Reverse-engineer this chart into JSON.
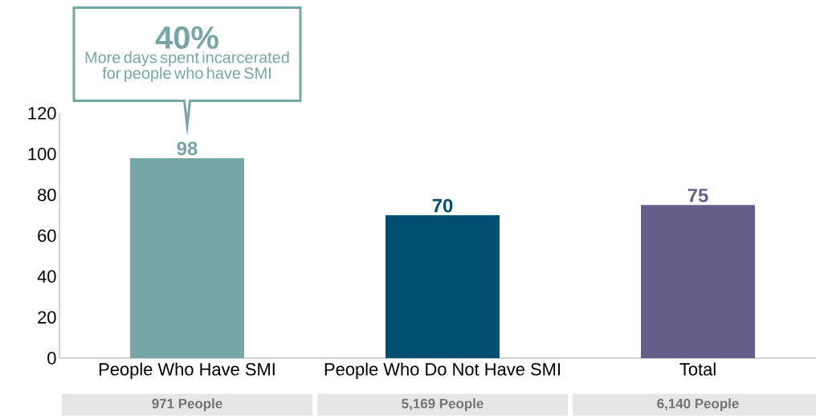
{
  "chart_data": {
    "type": "bar",
    "categories": [
      "People Who Have SMI",
      "People Who Do Not Have SMI",
      "Total"
    ],
    "values": [
      98,
      70,
      75
    ],
    "colors": [
      "#76a6a6",
      "#004e70",
      "#665e8a"
    ],
    "ylim": [
      0,
      120
    ],
    "yticks": [
      0,
      20,
      40,
      60,
      80,
      100,
      120
    ],
    "grid": false,
    "data_labels": true,
    "annotations": [
      "40%",
      "More days spent incarcerated for people who have SMI",
      "971 People",
      "5,169 People",
      "6,140 People"
    ]
  }
}
